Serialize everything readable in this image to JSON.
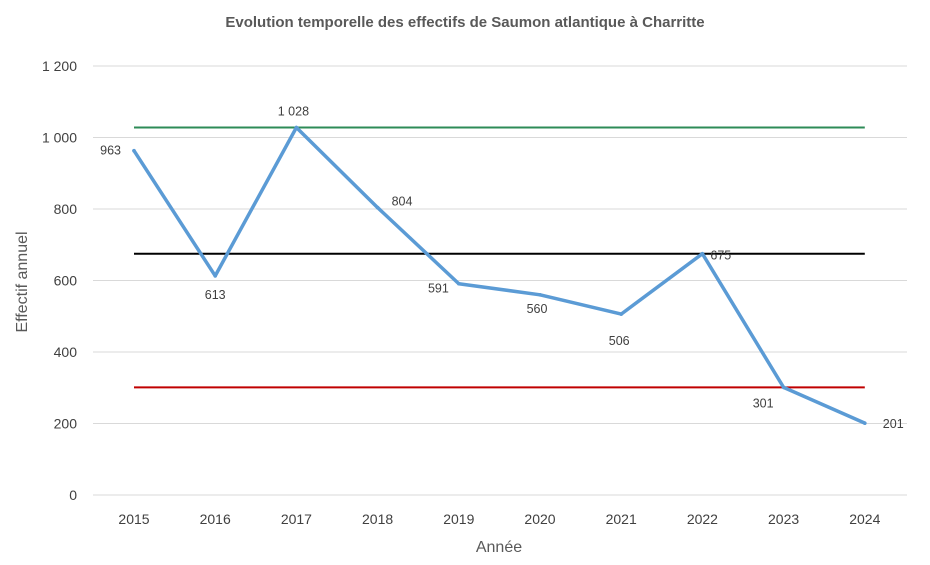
{
  "chart_data": {
    "type": "line",
    "title": "Evolution temporelle des effectifs de Saumon atlantique à Charritte",
    "xlabel": "Année",
    "ylabel": "Effectif annuel",
    "categories": [
      "2015",
      "2016",
      "2017",
      "2018",
      "2019",
      "2020",
      "2021",
      "2022",
      "2023",
      "2024"
    ],
    "series": [
      {
        "values": [
          963,
          613,
          1028,
          804,
          591,
          560,
          506,
          675,
          301,
          201
        ],
        "data_labels": [
          "963",
          "613",
          "1 028",
          "804",
          "591",
          "560",
          "506",
          "675",
          "301",
          "201"
        ],
        "color": "#5b9bd5"
      }
    ],
    "reference_lines": [
      {
        "value": 1028,
        "color": "#2e8b57"
      },
      {
        "value": 675,
        "color": "#000000"
      },
      {
        "value": 301,
        "color": "#c00000"
      }
    ],
    "ylim": [
      0,
      1200
    ],
    "yticks": [
      0,
      200,
      400,
      600,
      800,
      1000,
      1200
    ],
    "ytick_labels": [
      "0",
      "200",
      "400",
      "600",
      "800",
      "1 000",
      "1 200"
    ],
    "grid": true,
    "legend": "none"
  }
}
